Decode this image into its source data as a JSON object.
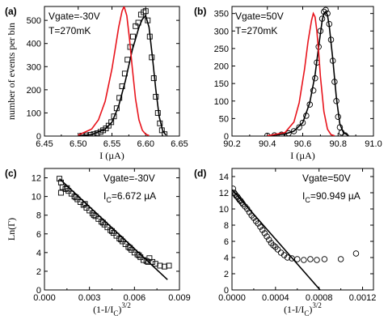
{
  "colors": {
    "black": "#000000",
    "red": "#e8141c"
  },
  "chart_data": [
    {
      "panel": "(a)",
      "type": "line",
      "xlabel": "I (µA)",
      "ylabel": "number of events per bin",
      "xlim": [
        6.45,
        6.65
      ],
      "ylim": [
        0,
        560
      ],
      "xticks": [
        6.45,
        6.5,
        6.55,
        6.6,
        6.65
      ],
      "xtick_labels": [
        "6.45",
        "6.50",
        "6.55",
        "6.60",
        "6.65"
      ],
      "yticks": [
        0,
        100,
        200,
        300,
        400,
        500
      ],
      "ytick_labels": [
        "0",
        "100",
        "200",
        "300",
        "400",
        "500"
      ],
      "annotations": [
        "Vgate=-30V",
        "T=270mK"
      ],
      "series": [
        {
          "style": "square-markers",
          "color": "#000000",
          "x": [
            6.506,
            6.512,
            6.518,
            6.523,
            6.528,
            6.533,
            6.537,
            6.541,
            6.545,
            6.549,
            6.553,
            6.557,
            6.561,
            6.565,
            6.569,
            6.573,
            6.577,
            6.581,
            6.585,
            6.589,
            6.593,
            6.597,
            6.6,
            6.603,
            6.606,
            6.609,
            6.612,
            6.615,
            6.618,
            6.621,
            6.624,
            6.628
          ],
          "y": [
            2,
            3,
            5,
            8,
            12,
            18,
            25,
            33,
            45,
            60,
            85,
            120,
            165,
            215,
            270,
            330,
            385,
            430,
            475,
            490,
            525,
            535,
            540,
            500,
            430,
            340,
            250,
            170,
            100,
            55,
            25,
            8
          ]
        },
        {
          "style": "line",
          "color": "#000000",
          "x": [
            6.5,
            6.52,
            6.54,
            6.55,
            6.56,
            6.57,
            6.58,
            6.59,
            6.595,
            6.6,
            6.605,
            6.61,
            6.615,
            6.62,
            6.625,
            6.63
          ],
          "y": [
            2,
            6,
            30,
            60,
            130,
            240,
            370,
            470,
            505,
            520,
            470,
            340,
            200,
            85,
            25,
            4
          ]
        },
        {
          "style": "line",
          "color": "#e8141c",
          "x": [
            6.5,
            6.52,
            6.53,
            6.54,
            6.55,
            6.555,
            6.56,
            6.565,
            6.568,
            6.572,
            6.576,
            6.58,
            6.585,
            6.59,
            6.595,
            6.6,
            6.605
          ],
          "y": [
            4,
            30,
            70,
            150,
            290,
            380,
            470,
            540,
            560,
            520,
            420,
            300,
            160,
            70,
            25,
            8,
            2
          ]
        }
      ]
    },
    {
      "panel": "(b)",
      "type": "line",
      "xlabel": "I (µA)",
      "ylabel": "",
      "xlim": [
        90.2,
        91.0
      ],
      "ylim": [
        0,
        370
      ],
      "xticks": [
        90.2,
        90.4,
        90.6,
        90.8,
        91.0
      ],
      "xtick_labels": [
        "90.2",
        "90.4",
        "90.6",
        "90.8",
        "91.0"
      ],
      "yticks": [
        0,
        50,
        100,
        150,
        200,
        250,
        300,
        350
      ],
      "ytick_labels": [
        "0",
        "50",
        "100",
        "150",
        "200",
        "250",
        "300",
        "350"
      ],
      "annotations": [
        "Vgate=50V",
        "T=270mK"
      ],
      "series": [
        {
          "style": "circle-markers",
          "color": "#000000",
          "x": [
            90.4,
            90.44,
            90.48,
            90.52,
            90.55,
            90.58,
            90.6,
            90.62,
            90.64,
            90.66,
            90.67,
            90.68,
            90.69,
            90.7,
            90.71,
            90.72,
            90.73,
            90.74,
            90.75,
            90.76,
            90.77,
            90.78,
            90.79,
            90.8,
            90.81,
            90.82,
            90.84
          ],
          "y": [
            1,
            2,
            4,
            8,
            14,
            25,
            38,
            58,
            90,
            130,
            165,
            210,
            255,
            300,
            335,
            355,
            360,
            350,
            320,
            275,
            215,
            155,
            100,
            55,
            25,
            10,
            2
          ]
        },
        {
          "style": "line",
          "color": "#000000",
          "x": [
            90.4,
            90.5,
            90.55,
            90.6,
            90.64,
            90.67,
            90.69,
            90.71,
            90.72,
            90.73,
            90.74,
            90.75,
            90.77,
            90.79,
            90.81,
            90.83,
            90.86
          ],
          "y": [
            1,
            6,
            14,
            38,
            95,
            175,
            255,
            330,
            350,
            355,
            345,
            315,
            220,
            110,
            35,
            10,
            1
          ]
        },
        {
          "style": "line",
          "color": "#e8141c",
          "x": [
            90.4,
            90.5,
            90.55,
            90.58,
            90.61,
            90.63,
            90.65,
            90.66,
            90.67,
            90.68,
            90.69,
            90.7,
            90.72,
            90.74,
            90.76,
            90.78
          ],
          "y": [
            1,
            10,
            40,
            95,
            190,
            270,
            330,
            350,
            340,
            300,
            240,
            170,
            70,
            20,
            4,
            1
          ]
        }
      ]
    },
    {
      "panel": "(c)",
      "type": "scatter",
      "xlabel": "(1-I/I",
      "xlabel_sub": "C",
      "xlabel_sup": "3/2",
      "xlabel_close": ")",
      "ylabel": "Ln(Γ)",
      "xlim": [
        0.0,
        0.009
      ],
      "ylim": [
        0,
        13
      ],
      "xticks": [
        0.0,
        0.003,
        0.006,
        0.009
      ],
      "xtick_labels": [
        "0.000",
        "0.003",
        "0.006",
        "0.009"
      ],
      "yticks": [
        0,
        2,
        4,
        6,
        8,
        10,
        12
      ],
      "ytick_labels": [
        "0",
        "2",
        "4",
        "6",
        "8",
        "10",
        "12"
      ],
      "annotations": [
        "Vgate=-30V",
        "I",
        "C",
        "=6.672 µA"
      ],
      "series": [
        {
          "style": "square-markers",
          "color": "#000000",
          "x": [
            0.001,
            0.0011,
            0.0012,
            0.0014,
            0.0016,
            0.0018,
            0.002,
            0.0022,
            0.0024,
            0.0026,
            0.0028,
            0.003,
            0.0032,
            0.0034,
            0.0036,
            0.0038,
            0.004,
            0.0042,
            0.0044,
            0.0046,
            0.0048,
            0.005,
            0.0052,
            0.0054,
            0.0056,
            0.0058,
            0.006,
            0.0062,
            0.0064,
            0.0066,
            0.0068,
            0.007,
            0.0072,
            0.0074,
            0.0077,
            0.008,
            0.0083,
            0.0011,
            0.0015,
            0.0021,
            0.0027,
            0.0033,
            0.0039,
            0.0045,
            0.0051,
            0.0057,
            0.0063,
            0.0069
          ],
          "y": [
            11.9,
            11.5,
            11.0,
            10.8,
            10.6,
            10.3,
            10.0,
            9.7,
            9.4,
            9.1,
            8.8,
            8.5,
            8.2,
            7.9,
            7.6,
            7.3,
            7.0,
            6.7,
            6.4,
            6.1,
            5.8,
            5.5,
            5.2,
            4.9,
            4.6,
            4.3,
            4.0,
            3.8,
            3.5,
            3.2,
            3.1,
            3.4,
            3.0,
            2.8,
            2.6,
            2.5,
            2.6,
            10.4,
            10.9,
            9.9,
            9.2,
            8.0,
            7.2,
            6.3,
            5.4,
            4.5,
            3.7,
            3.0
          ]
        },
        {
          "style": "line",
          "color": "#000000",
          "x": [
            0.001,
            0.0082
          ],
          "y": [
            11.9,
            1.1
          ]
        }
      ]
    },
    {
      "panel": "(d)",
      "type": "scatter",
      "xlabel": "(1-I/I",
      "xlabel_sub": "C",
      "xlabel_sup": "3/2",
      "xlabel_close": ")",
      "ylabel": "",
      "xlim": [
        0.0,
        0.0013
      ],
      "ylim": [
        0,
        15
      ],
      "xticks": [
        0.0,
        0.0004,
        0.0008,
        0.0012
      ],
      "xtick_labels": [
        "0.0000",
        "0.0004",
        "0.0008",
        "0.0012"
      ],
      "yticks": [
        0,
        2,
        4,
        6,
        8,
        10,
        12,
        14
      ],
      "ytick_labels": [
        "0",
        "2",
        "4",
        "6",
        "8",
        "10",
        "12",
        "14"
      ],
      "annotations": [
        "Vgate=50V",
        "I",
        "C",
        "=90.949 µA"
      ],
      "series": [
        {
          "style": "circle-markers",
          "color": "#000000",
          "x": [
            1e-05,
            2e-05,
            3e-05,
            4e-05,
            5e-05,
            6e-05,
            7e-05,
            8e-05,
            9e-05,
            0.0001,
            0.00012,
            0.00014,
            0.00016,
            0.00018,
            0.0002,
            0.00022,
            0.00024,
            0.00026,
            0.00028,
            0.0003,
            0.00032,
            0.00034,
            0.00036,
            0.00038,
            0.0004,
            0.00042,
            0.00045,
            0.00048,
            0.00051,
            0.00055,
            0.0006,
            0.00066,
            0.00072,
            0.00078,
            0.00085,
            0.001,
            0.00114
          ],
          "y": [
            12.5,
            12.0,
            11.8,
            11.6,
            11.5,
            11.3,
            11.1,
            11.0,
            10.8,
            10.6,
            10.3,
            10.0,
            9.6,
            9.2,
            8.9,
            8.5,
            8.2,
            7.8,
            7.4,
            7.0,
            6.6,
            6.2,
            5.8,
            5.5,
            5.3,
            5.0,
            4.6,
            4.3,
            4.0,
            3.9,
            3.8,
            3.7,
            3.8,
            3.7,
            3.8,
            3.8,
            4.5
          ]
        },
        {
          "style": "line",
          "color": "#000000",
          "x": [
            0.0,
            0.00081
          ],
          "y": [
            12.4,
            0
          ]
        }
      ]
    }
  ],
  "fig": {
    "panel_labels": [
      "(a)",
      "(b)",
      "(c)",
      "(d)"
    ]
  }
}
